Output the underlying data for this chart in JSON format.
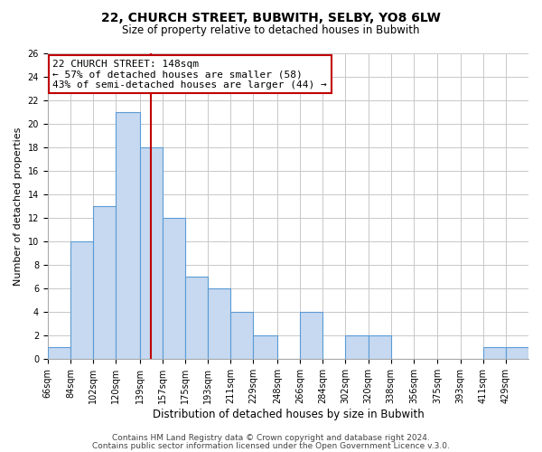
{
  "title": "22, CHURCH STREET, BUBWITH, SELBY, YO8 6LW",
  "subtitle": "Size of property relative to detached houses in Bubwith",
  "xlabel": "Distribution of detached houses by size in Bubwith",
  "ylabel": "Number of detached properties",
  "bin_labels": [
    "66sqm",
    "84sqm",
    "102sqm",
    "120sqm",
    "139sqm",
    "157sqm",
    "175sqm",
    "193sqm",
    "211sqm",
    "229sqm",
    "248sqm",
    "266sqm",
    "284sqm",
    "302sqm",
    "320sqm",
    "338sqm",
    "356sqm",
    "375sqm",
    "393sqm",
    "411sqm",
    "429sqm"
  ],
  "bin_edges": [
    66,
    84,
    102,
    120,
    139,
    157,
    175,
    193,
    211,
    229,
    248,
    266,
    284,
    302,
    320,
    338,
    356,
    375,
    393,
    411,
    429,
    447
  ],
  "counts": [
    1,
    10,
    13,
    21,
    18,
    12,
    7,
    6,
    4,
    2,
    0,
    4,
    0,
    2,
    2,
    0,
    0,
    0,
    0,
    1,
    1
  ],
  "bar_color": "#c6d9f0",
  "bar_edge_color": "#5b9bd5",
  "property_value": 148,
  "vline_x": 148,
  "vline_color": "#c00000",
  "annotation_line1": "22 CHURCH STREET: 148sqm",
  "annotation_line2": "← 57% of detached houses are smaller (58)",
  "annotation_line3": "43% of semi-detached houses are larger (44) →",
  "annotation_box_color": "white",
  "annotation_box_edge": "#c00000",
  "ylim": [
    0,
    26
  ],
  "yticks": [
    0,
    2,
    4,
    6,
    8,
    10,
    12,
    14,
    16,
    18,
    20,
    22,
    24,
    26
  ],
  "footer1": "Contains HM Land Registry data © Crown copyright and database right 2024.",
  "footer2": "Contains public sector information licensed under the Open Government Licence v.3.0.",
  "background_color": "#ffffff",
  "grid_color": "#c8c8c8",
  "title_fontsize": 10,
  "subtitle_fontsize": 8.5,
  "ylabel_fontsize": 8,
  "xlabel_fontsize": 8.5,
  "tick_fontsize": 7,
  "annotation_fontsize": 8,
  "footer_fontsize": 6.5
}
